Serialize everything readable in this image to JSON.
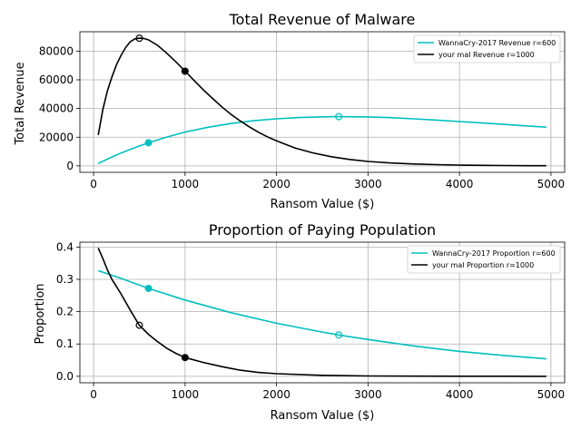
{
  "chart_data": [
    {
      "type": "line",
      "title": "Total Revenue of Malware",
      "xlabel": "Ransom Value ($)",
      "ylabel": "Total Revenue",
      "xlim": [
        -150,
        5150
      ],
      "ylim": [
        -4500,
        93500
      ],
      "grid": true,
      "legend_position": "top-right",
      "x_ticks": [
        0,
        1000,
        2000,
        3000,
        4000,
        5000
      ],
      "x_tick_labels": [
        "0",
        "1000",
        "2000",
        "3000",
        "4000",
        "5000"
      ],
      "y_ticks": [
        0,
        20000,
        40000,
        60000,
        80000
      ],
      "y_tick_labels": [
        "0",
        "20000",
        "40000",
        "60000",
        "80000"
      ],
      "series": [
        {
          "name": "WannaCry-2017 Revenue r=600",
          "color": "#00bfbf",
          "x": [
            50,
            100,
            200,
            300,
            400,
            500,
            600,
            800,
            1000,
            1250,
            1500,
            1750,
            2000,
            2250,
            2500,
            2680,
            3000,
            3250,
            3500,
            3750,
            4000,
            4250,
            4500,
            4750,
            4950
          ],
          "y": [
            1630,
            3210,
            6190,
            8950,
            11500,
            13840,
            16120,
            20100,
            23600,
            26900,
            29500,
            31500,
            32800,
            33700,
            34200,
            34300,
            34100,
            33600,
            32800,
            31900,
            30900,
            29900,
            28900,
            27800,
            27000
          ],
          "markers": [
            {
              "x": 600,
              "y": 16120,
              "filled": true
            },
            {
              "x": 2680,
              "y": 34300,
              "filled": false
            }
          ]
        },
        {
          "name": "your mal Revenue r=1000",
          "color": "#000000",
          "x": [
            50,
            80,
            100,
            150,
            200,
            250,
            300,
            350,
            400,
            450,
            500,
            550,
            600,
            700,
            800,
            900,
            1000,
            1100,
            1200,
            1300,
            1400,
            1500,
            1600,
            1700,
            1800,
            1900,
            2000,
            2200,
            2400,
            2600,
            2800,
            3000,
            3250,
            3500,
            3750,
            4000,
            4250,
            4500,
            4750,
            4950
          ],
          "y": [
            21500,
            32000,
            39000,
            52000,
            62000,
            70500,
            77000,
            82500,
            86500,
            88500,
            89000,
            88800,
            87800,
            84000,
            78500,
            72500,
            66000,
            59500,
            53000,
            47000,
            41200,
            36000,
            31500,
            27300,
            23500,
            20300,
            17500,
            12500,
            9000,
            6400,
            4500,
            3100,
            2000,
            1300,
            850,
            550,
            350,
            220,
            140,
            90
          ],
          "markers": [
            {
              "x": 500,
              "y": 89000,
              "filled": false
            },
            {
              "x": 1000,
              "y": 66000,
              "filled": true
            }
          ]
        }
      ]
    },
    {
      "type": "line",
      "title": "Proportion of Paying Population",
      "xlabel": "Ransom Value ($)",
      "ylabel": "Proportion",
      "xlim": [
        -150,
        5150
      ],
      "ylim": [
        -0.02,
        0.415
      ],
      "grid": true,
      "legend_position": "top-right",
      "x_ticks": [
        0,
        1000,
        2000,
        3000,
        4000,
        5000
      ],
      "x_tick_labels": [
        "0",
        "1000",
        "2000",
        "3000",
        "4000",
        "5000"
      ],
      "y_ticks": [
        0.0,
        0.1,
        0.2,
        0.3,
        0.4
      ],
      "y_tick_labels": [
        "0.0",
        "0.1",
        "0.2",
        "0.3",
        "0.4"
      ],
      "series": [
        {
          "name": "WannaCry-2017 Proportion r=600",
          "color": "#00bfbf",
          "x": [
            50,
            300,
            600,
            1000,
            1500,
            2000,
            2500,
            2680,
            3000,
            3500,
            4000,
            4500,
            4950
          ],
          "y": [
            0.327,
            0.303,
            0.272,
            0.236,
            0.197,
            0.164,
            0.137,
            0.128,
            0.114,
            0.094,
            0.077,
            0.064,
            0.054
          ],
          "markers": [
            {
              "x": 600,
              "y": 0.272,
              "filled": true
            },
            {
              "x": 2680,
              "y": 0.128,
              "filled": false
            }
          ]
        },
        {
          "name": "your mal Proportion r=1000",
          "color": "#000000",
          "x": [
            50,
            100,
            150,
            200,
            300,
            400,
            500,
            600,
            700,
            800,
            900,
            1000,
            1200,
            1400,
            1600,
            1800,
            2000,
            2500,
            3000,
            3500,
            4000,
            4500,
            4950
          ],
          "y": [
            0.397,
            0.365,
            0.33,
            0.3,
            0.255,
            0.205,
            0.158,
            0.13,
            0.107,
            0.087,
            0.071,
            0.058,
            0.043,
            0.03,
            0.019,
            0.012,
            0.008,
            0.003,
            0.001,
            0.0005,
            0.0002,
            0.0001,
            0.0
          ],
          "markers": [
            {
              "x": 500,
              "y": 0.158,
              "filled": false
            },
            {
              "x": 1000,
              "y": 0.058,
              "filled": true
            }
          ]
        }
      ]
    }
  ]
}
